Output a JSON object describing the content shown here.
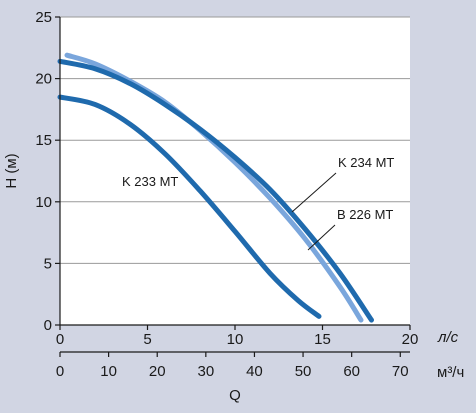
{
  "chart_data": {
    "type": "line",
    "ylabel": "H (м)",
    "xlabel": "Q",
    "x_unit_primary": "л/с",
    "x_unit_secondary": "м³/ч",
    "xlim": [
      0,
      20
    ],
    "ylim": [
      0,
      25
    ],
    "x_ticks": [
      "0",
      "5",
      "10",
      "15",
      "20"
    ],
    "x2_ticks": [
      "0",
      "10",
      "20",
      "30",
      "40",
      "50",
      "60",
      "70"
    ],
    "y_ticks": [
      "0",
      "5",
      "10",
      "15",
      "20",
      "25"
    ],
    "grid": "horizontal",
    "series": [
      {
        "name": "K 233 MT",
        "color": "#1f6aad",
        "x": [
          0,
          2,
          4,
          6,
          8,
          10,
          12,
          13.6,
          14.8
        ],
        "y": [
          18.5,
          17.9,
          16.3,
          13.9,
          10.9,
          7.6,
          4.2,
          2.0,
          0.7
        ]
      },
      {
        "name": "K 234 MT",
        "color": "#1f6aad",
        "x": [
          0,
          2,
          4,
          6,
          8,
          10,
          12,
          14,
          16,
          17.8
        ],
        "y": [
          21.4,
          20.8,
          19.6,
          17.9,
          15.9,
          13.6,
          11.0,
          7.8,
          4.2,
          0.4
        ]
      },
      {
        "name": "B 226 MT",
        "color": "#7aa6dc",
        "x": [
          0.4,
          2,
          4,
          6,
          8,
          10,
          12,
          14,
          16,
          17.2
        ],
        "y": [
          21.9,
          21.2,
          19.8,
          18.1,
          15.8,
          13.2,
          10.3,
          7.0,
          3.1,
          0.4
        ]
      }
    ]
  }
}
